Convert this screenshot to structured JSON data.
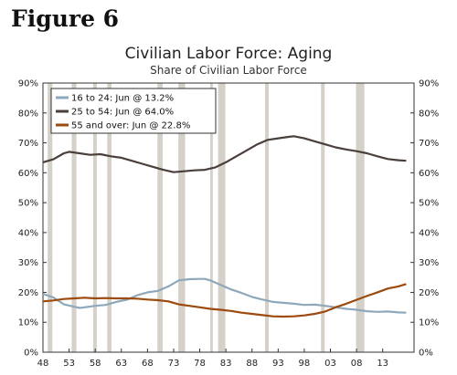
{
  "figure_label": "Figure 6",
  "chart_data": {
    "type": "line",
    "title": "Civilian Labor Force: Aging",
    "subtitle": "Share of Civilian Labor Force",
    "xlabel": "",
    "ylabel": "",
    "xlim": [
      1948,
      2019
    ],
    "ylim": [
      0,
      90
    ],
    "x_tick_labels": [
      "48",
      "53",
      "58",
      "63",
      "68",
      "73",
      "78",
      "83",
      "88",
      "93",
      "98",
      "03",
      "08",
      "13"
    ],
    "x_tick_years": [
      1948,
      1953,
      1958,
      1963,
      1968,
      1973,
      1978,
      1983,
      1988,
      1993,
      1998,
      2003,
      2008,
      2013
    ],
    "y_ticks": [
      0,
      10,
      20,
      30,
      40,
      50,
      60,
      70,
      80,
      90
    ],
    "y_tick_labels": [
      "0%",
      "10%",
      "20%",
      "30%",
      "40%",
      "50%",
      "60%",
      "70%",
      "80%",
      "90%"
    ],
    "y_axes": "left-and-right",
    "grid": false,
    "legend_position": "top-left",
    "recession_shading": [
      [
        1948.9,
        1949.8
      ],
      [
        1953.5,
        1954.4
      ],
      [
        1957.6,
        1958.3
      ],
      [
        1960.3,
        1961.1
      ],
      [
        1969.9,
        1970.9
      ],
      [
        1973.9,
        1975.2
      ],
      [
        1980.0,
        1980.5
      ],
      [
        1981.5,
        1982.9
      ],
      [
        1990.5,
        1991.2
      ],
      [
        2001.2,
        2001.9
      ],
      [
        2007.9,
        2009.5
      ]
    ],
    "colors": {
      "recession": "#d5d1c8",
      "16 to 24": "#8ea8bb",
      "25 to 54": "#4a3f3b",
      "55 and over": "#9c4a0e"
    },
    "series": [
      {
        "name": "16 to 24: Jun @ 13.2%",
        "key": "16 to 24",
        "x": [
          1948,
          1950,
          1952,
          1954,
          1955,
          1956,
          1958,
          1960,
          1962,
          1964,
          1966,
          1968,
          1970,
          1972,
          1974,
          1976,
          1978,
          1979,
          1980,
          1982,
          1984,
          1986,
          1988,
          1990,
          1992,
          1994,
          1996,
          1998,
          2000,
          2002,
          2004,
          2006,
          2008,
          2010,
          2012,
          2014,
          2016,
          2017.5
        ],
        "values": [
          19.5,
          18.3,
          16.0,
          15.2,
          14.8,
          15.0,
          15.5,
          15.8,
          16.8,
          17.5,
          19.0,
          20.0,
          20.5,
          22.0,
          24.0,
          24.4,
          24.5,
          24.5,
          24.0,
          22.5,
          21.0,
          19.8,
          18.5,
          17.6,
          16.8,
          16.5,
          16.2,
          15.8,
          15.9,
          15.5,
          15.0,
          14.5,
          14.2,
          13.7,
          13.5,
          13.6,
          13.3,
          13.2
        ]
      },
      {
        "name": "25 to 54: Jun @ 64.0%",
        "key": "25 to 54",
        "x": [
          1948,
          1950,
          1952,
          1953,
          1955,
          1957,
          1959,
          1961,
          1963,
          1965,
          1967,
          1969,
          1971,
          1973,
          1975,
          1977,
          1979,
          1981,
          1983,
          1985,
          1987,
          1989,
          1991,
          1993,
          1995,
          1996,
          1998,
          2000,
          2002,
          2004,
          2006,
          2008,
          2010,
          2012,
          2014,
          2016,
          2017.5
        ],
        "values": [
          63.5,
          64.5,
          66.5,
          67.0,
          66.5,
          66.0,
          66.2,
          65.5,
          65.0,
          64.0,
          63.0,
          62.0,
          61.0,
          60.2,
          60.5,
          60.8,
          61.0,
          61.8,
          63.5,
          65.5,
          67.5,
          69.5,
          71.0,
          71.5,
          72.0,
          72.2,
          71.5,
          70.5,
          69.5,
          68.5,
          67.8,
          67.2,
          66.5,
          65.5,
          64.6,
          64.2,
          64.0
        ]
      },
      {
        "name": "55 and over: Jun @ 22.8%",
        "key": "55 and over",
        "x": [
          1948,
          1950,
          1952,
          1954,
          1956,
          1958,
          1960,
          1962,
          1964,
          1966,
          1968,
          1970,
          1972,
          1974,
          1976,
          1978,
          1980,
          1982,
          1984,
          1986,
          1988,
          1990,
          1992,
          1994,
          1996,
          1998,
          2000,
          2002,
          2004,
          2006,
          2008,
          2010,
          2012,
          2014,
          2016,
          2017.5
        ],
        "values": [
          17.0,
          17.3,
          17.8,
          18.0,
          18.2,
          18.0,
          18.1,
          18.0,
          18.0,
          17.9,
          17.6,
          17.4,
          17.0,
          16.0,
          15.5,
          15.0,
          14.5,
          14.2,
          13.8,
          13.2,
          12.8,
          12.4,
          12.0,
          11.9,
          12.0,
          12.3,
          12.8,
          13.6,
          15.0,
          16.2,
          17.5,
          18.8,
          20.0,
          21.3,
          22.0,
          22.8
        ]
      }
    ]
  }
}
